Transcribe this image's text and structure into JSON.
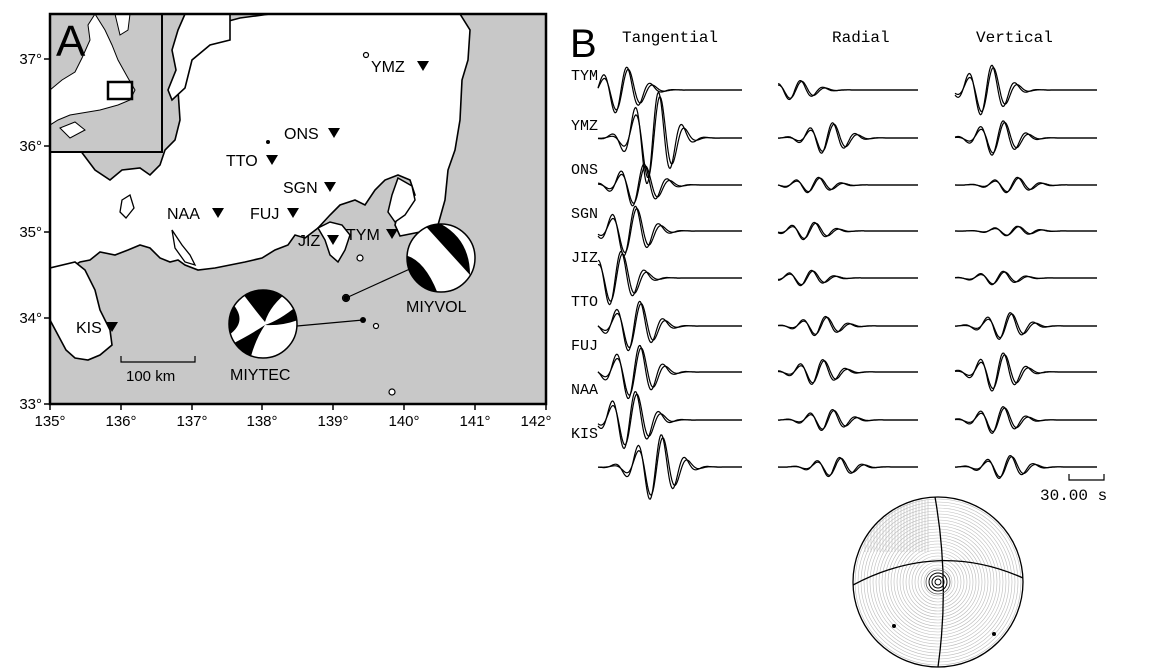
{
  "panel_a": {
    "label": "A",
    "lat_ticks": [
      "37°",
      "36°",
      "35°",
      "34°",
      "33°"
    ],
    "lon_ticks": [
      "135°",
      "136°",
      "137°",
      "138°",
      "139°",
      "140°",
      "141°",
      "142°"
    ],
    "stations": [
      "YMZ",
      "ONS",
      "TTO",
      "SGN",
      "NAA",
      "FUJ",
      "JIZ",
      "TYM",
      "KIS"
    ],
    "events": [
      "MIYVOL",
      "MIYTEC"
    ],
    "scale_bar": "100 km",
    "colors": {
      "land": "#ffffff",
      "sea": "#c8c8c8",
      "coast": "#000000"
    }
  },
  "panel_b": {
    "label": "B",
    "columns": [
      "Tangential",
      "Radial",
      "Vertical"
    ],
    "stations": [
      "TYM",
      "YMZ",
      "ONS",
      "SGN",
      "JIZ",
      "TTO",
      "FUJ",
      "NAA",
      "KIS"
    ],
    "time_scale": "30.00 s"
  }
}
